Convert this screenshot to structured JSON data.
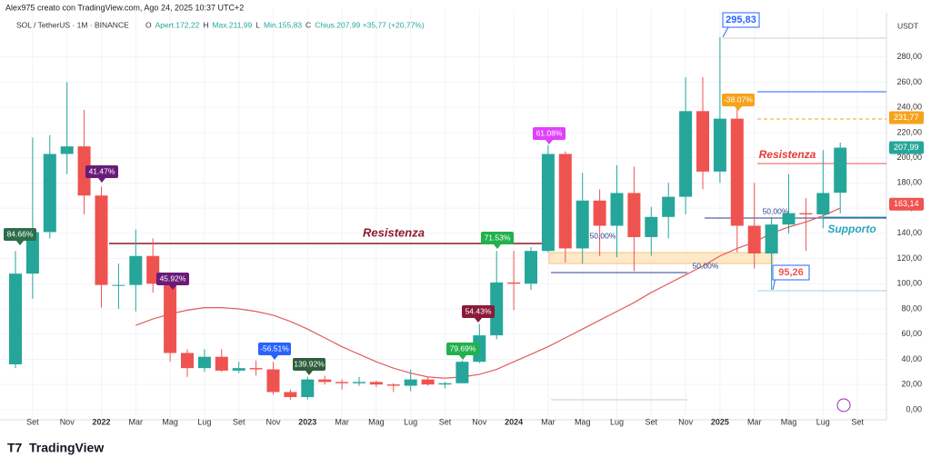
{
  "header": {
    "author": "Alex975 creato con TradingView.com, Ago 24, 2025 10:37 UTC+2",
    "symbol": "SOL / TetherUS · 1M · BINANCE",
    "ohlc": [
      "O",
      "Apert.172,22",
      "H",
      "Max.211,99",
      "L",
      "Min.155,83",
      "C",
      "Chius.207,99 +35,77 (+20,77%)"
    ]
  },
  "footer": {
    "brand": "TradingView"
  },
  "chart_data": {
    "type": "candlestick",
    "unit": "USDT",
    "categories": [
      null,
      "Set",
      null,
      "Nov",
      null,
      "2022",
      null,
      "Mar",
      null,
      "Mag",
      null,
      "Lug",
      null,
      "Set",
      null,
      "Nov",
      null,
      "2023",
      null,
      "Mar",
      null,
      "Mag",
      null,
      "Lug",
      null,
      "Set",
      null,
      "Nov",
      null,
      "2024",
      null,
      "Mar",
      null,
      "Mag",
      null,
      "Lug",
      null,
      "Set",
      null,
      "Nov",
      null,
      "2025",
      null,
      "Mar",
      null,
      "Mag",
      null,
      "Lug",
      null,
      "Set"
    ],
    "open": [
      36,
      108,
      141,
      203,
      209,
      170,
      99,
      99,
      122,
      100,
      45,
      33,
      42,
      31,
      33,
      32,
      14,
      10,
      24,
      22,
      21,
      22,
      20,
      19,
      24,
      20,
      21,
      38,
      59,
      101,
      100,
      126,
      203,
      128,
      166,
      146,
      172,
      137,
      153,
      169,
      237,
      189,
      231,
      146,
      124,
      147,
      156,
      155,
      172.22,
      null
    ],
    "high": [
      126,
      216,
      218,
      260,
      238,
      177,
      116,
      143,
      136,
      104,
      48,
      48,
      48,
      38,
      39,
      38,
      16,
      26,
      27,
      24,
      26,
      23,
      21,
      32,
      26,
      22,
      39,
      68,
      126,
      126,
      129,
      210,
      205,
      188,
      175,
      194,
      193,
      161,
      180,
      264,
      264,
      295.83,
      244,
      180,
      153,
      187,
      168,
      206,
      211.99,
      null
    ],
    "low": [
      33,
      88,
      136,
      187,
      155,
      81,
      80,
      78,
      93,
      38,
      26,
      30,
      30,
      29,
      27,
      12,
      8,
      8,
      20,
      16,
      19,
      18,
      14,
      14.5,
      19,
      17,
      21,
      37,
      56,
      79,
      95,
      125,
      117,
      116,
      122,
      121,
      110,
      122,
      136,
      155,
      175,
      180,
      125,
      112,
      95.26,
      140,
      126,
      144,
      155.83,
      null
    ],
    "close": [
      108,
      141,
      203,
      209,
      170,
      99,
      99,
      122,
      100,
      45,
      33,
      42,
      31,
      33,
      32,
      14,
      10,
      24,
      22,
      21,
      22,
      20,
      19,
      24,
      20,
      21,
      38,
      59,
      101,
      100,
      126,
      203,
      128,
      166,
      146,
      172,
      137,
      153,
      169,
      237,
      189,
      231,
      146,
      124,
      147,
      156,
      155,
      172,
      207.99,
      null
    ],
    "ma": {
      "color": "#e25b5b",
      "values": [
        null,
        null,
        null,
        null,
        null,
        null,
        null,
        67,
        72,
        76,
        79,
        81,
        81,
        80,
        78,
        75,
        70,
        64,
        57,
        50,
        44,
        38,
        33,
        29,
        26,
        25,
        26,
        28,
        32,
        38,
        44,
        50,
        57,
        64,
        71,
        78,
        85,
        93,
        100,
        107,
        114,
        122,
        128,
        133,
        140,
        145,
        149,
        154,
        160,
        null
      ]
    },
    "up_color": "#26a69a",
    "down_color": "#ef5350",
    "ylim": [
      -8,
      318
    ],
    "yticks": [
      {
        "value": 0,
        "label": "0,00"
      },
      {
        "value": 20,
        "label": "20,00"
      },
      {
        "value": 40,
        "label": "40,00"
      },
      {
        "value": 60,
        "label": "60,00"
      },
      {
        "value": 80,
        "label": "80,00"
      },
      {
        "value": 100,
        "label": "100,00"
      },
      {
        "value": 120,
        "label": "120,00"
      },
      {
        "value": 140,
        "label": "140,00"
      },
      {
        "value": 160,
        "label": "160,00"
      },
      {
        "value": 180,
        "label": "180,00"
      },
      {
        "value": 200,
        "label": "200,00"
      },
      {
        "value": 220,
        "label": "220,00"
      },
      {
        "value": 240,
        "label": "240,00"
      },
      {
        "value": 260,
        "label": "260,00"
      },
      {
        "value": 280,
        "label": "280,00"
      }
    ],
    "grid": true,
    "price_labels": [
      {
        "value": 231.77,
        "label": "231,77",
        "color": "#f7a21b"
      },
      {
        "value": 207.99,
        "label": "207,99",
        "color": "#26a69a"
      },
      {
        "value": 163.14,
        "label": "163,14",
        "color": "#ef5350"
      }
    ],
    "markers": [
      {
        "value": 295.83,
        "label": "295,83"
      },
      {
        "value": 95.26,
        "label": "95,26"
      }
    ],
    "annotations": [
      {
        "text": "84.66%",
        "color": "#2b6e4a"
      },
      {
        "text": "41.47%",
        "color": "#6a1b7a"
      },
      {
        "text": "45.92%",
        "color": "#6a1b7a"
      },
      {
        "text": "-56.51%",
        "color": "#2962ff"
      },
      {
        "text": "139.92%",
        "color": "#2e5e3e"
      },
      {
        "text": "79.69%",
        "color": "#22b14c"
      },
      {
        "text": "54.43%",
        "color": "#8b1a3a"
      },
      {
        "text": "71.53%",
        "color": "#22b14c"
      },
      {
        "text": "61.08%",
        "color": "#e040fb"
      },
      {
        "text": "-38.07%",
        "color": "#f7a21b"
      }
    ],
    "texts": [
      {
        "text": "Resistenza",
        "color": "#8b1a2a"
      },
      {
        "text": "Resistenza",
        "color": "#e53935"
      },
      {
        "text": "Supporto",
        "color": "#26a6c0"
      },
      {
        "text": "50,00%",
        "color": "#2c3e8c"
      },
      {
        "text": "50,00%",
        "color": "#2c3e8c"
      },
      {
        "text": "50,00%",
        "color": "#2c3e8c"
      }
    ]
  }
}
